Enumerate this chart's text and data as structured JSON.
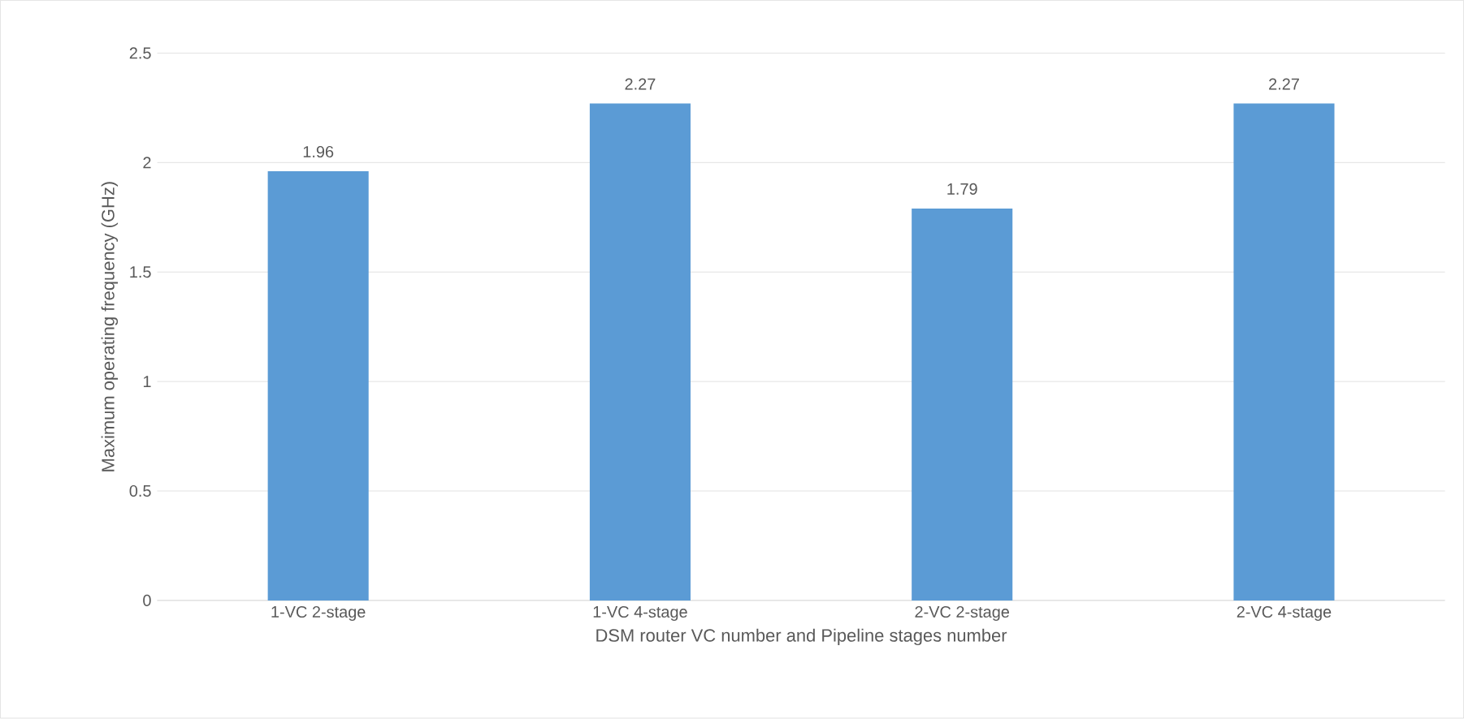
{
  "chart_data": {
    "type": "bar",
    "categories": [
      "1-VC 2-stage",
      "1-VC 4-stage",
      "2-VC 2-stage",
      "2-VC 4-stage"
    ],
    "values": [
      1.96,
      2.27,
      1.79,
      2.27
    ],
    "color": "#5b9bd5",
    "xlabel": "DSM router VC number and Pipeline stages number",
    "ylabel": "Maximum operating frequency (GHz)",
    "ylim": [
      0,
      2.5
    ],
    "yticks": [
      0,
      0.5,
      1,
      1.5,
      2,
      2.5
    ],
    "grid": "y",
    "data_labels": true
  }
}
